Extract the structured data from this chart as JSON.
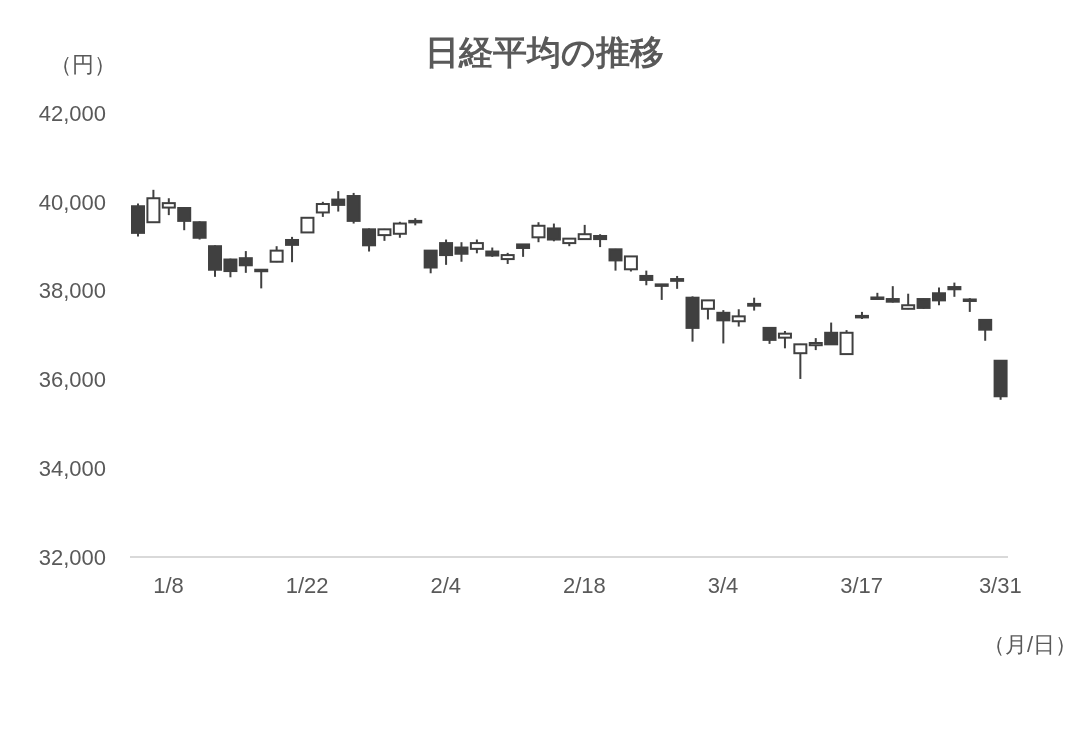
{
  "chart_data": {
    "type": "candlestick",
    "title": "日経平均の推移",
    "ylabel": "（円）",
    "xlabel": "（月/日）",
    "categories": [
      null,
      null,
      "1/8",
      null,
      null,
      null,
      null,
      null,
      null,
      null,
      null,
      "1/22",
      null,
      null,
      null,
      null,
      null,
      null,
      null,
      null,
      "2/4",
      null,
      null,
      null,
      null,
      null,
      null,
      null,
      null,
      "2/18",
      null,
      null,
      null,
      null,
      null,
      null,
      null,
      null,
      "3/4",
      null,
      null,
      null,
      null,
      null,
      null,
      null,
      null,
      "3/17",
      null,
      null,
      null,
      null,
      null,
      null,
      null,
      null,
      "3/31"
    ],
    "ohlc": [
      [
        39900,
        39960,
        39220,
        39300
      ],
      [
        39540,
        40270,
        39540,
        40080
      ],
      [
        39870,
        40080,
        39700,
        39970
      ],
      [
        39860,
        39880,
        39360,
        39570
      ],
      [
        39540,
        39560,
        39150,
        39190
      ],
      [
        39000,
        39020,
        38310,
        38470
      ],
      [
        38700,
        38720,
        38300,
        38440
      ],
      [
        38730,
        38890,
        38400,
        38570
      ],
      [
        38470,
        38480,
        38050,
        38450
      ],
      [
        38650,
        39000,
        38640,
        38900
      ],
      [
        39140,
        39210,
        38640,
        39030
      ],
      [
        39310,
        39650,
        39300,
        39640
      ],
      [
        39760,
        40000,
        39660,
        39950
      ],
      [
        40050,
        40240,
        39780,
        39930
      ],
      [
        40130,
        40200,
        39510,
        39570
      ],
      [
        39380,
        39400,
        38880,
        39020
      ],
      [
        39250,
        39390,
        39120,
        39380
      ],
      [
        39280,
        39550,
        39190,
        39510
      ],
      [
        39550,
        39630,
        39470,
        39570
      ],
      [
        38900,
        38910,
        38390,
        38520
      ],
      [
        39070,
        39150,
        38580,
        38800
      ],
      [
        38970,
        39090,
        38650,
        38830
      ],
      [
        38940,
        39150,
        38840,
        39070
      ],
      [
        38880,
        38970,
        38760,
        38790
      ],
      [
        38710,
        38850,
        38600,
        38800
      ],
      [
        39040,
        39050,
        38760,
        38960
      ],
      [
        39200,
        39540,
        39090,
        39460
      ],
      [
        39400,
        39510,
        39110,
        39150
      ],
      [
        39070,
        39180,
        39000,
        39170
      ],
      [
        39160,
        39480,
        39150,
        39270
      ],
      [
        39230,
        39270,
        38980,
        39160
      ],
      [
        38930,
        38940,
        38450,
        38680
      ],
      [
        38480,
        38770,
        38430,
        38770
      ],
      [
        38330,
        38450,
        38120,
        38240
      ],
      [
        38110,
        38150,
        37790,
        38140
      ],
      [
        38220,
        38330,
        38040,
        38260
      ],
      [
        37840,
        37870,
        36850,
        37160
      ],
      [
        37590,
        37780,
        37350,
        37780
      ],
      [
        37500,
        37560,
        36810,
        37330
      ],
      [
        37310,
        37580,
        37190,
        37420
      ],
      [
        37660,
        37840,
        37550,
        37700
      ],
      [
        37160,
        37180,
        36800,
        36890
      ],
      [
        36940,
        37090,
        36700,
        37030
      ],
      [
        36590,
        36800,
        36010,
        36790
      ],
      [
        36770,
        36930,
        36660,
        36820
      ],
      [
        37050,
        37280,
        36790,
        36790
      ],
      [
        36570,
        37110,
        36570,
        37050
      ],
      [
        37430,
        37520,
        37360,
        37400
      ],
      [
        37820,
        37950,
        37820,
        37845
      ],
      [
        37810,
        38100,
        37730,
        37750
      ],
      [
        37590,
        37930,
        37580,
        37670
      ],
      [
        37810,
        37820,
        37590,
        37610
      ],
      [
        37940,
        38070,
        37670,
        37780
      ],
      [
        38080,
        38180,
        37860,
        38030
      ],
      [
        37780,
        37830,
        37520,
        37800
      ],
      [
        37340,
        37350,
        36870,
        37120
      ],
      [
        36420,
        36430,
        35540,
        35620
      ]
    ],
    "color": "#404040",
    "ylim": [
      32000,
      42000
    ],
    "yticks": [
      {
        "value": 32000,
        "label": "32,000"
      },
      {
        "value": 34000,
        "label": "34,000"
      },
      {
        "value": 36000,
        "label": "36,000"
      },
      {
        "value": 38000,
        "label": "38,000"
      },
      {
        "value": 40000,
        "label": "40,000"
      },
      {
        "value": 42000,
        "label": "42,000"
      }
    ]
  }
}
